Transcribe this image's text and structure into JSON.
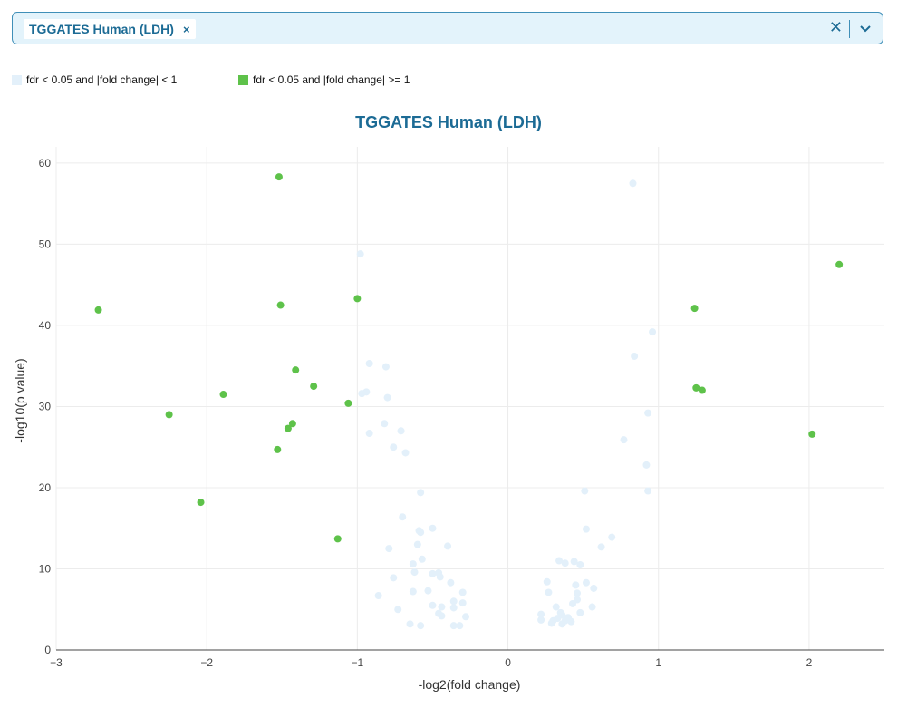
{
  "selector": {
    "selected_chip": "TGGATES Human (LDH)",
    "chip_remove": "×",
    "clear": "✕"
  },
  "legend": [
    {
      "label": "fdr < 0.05 and |fold change| < 1",
      "color": "#e3f0fa"
    },
    {
      "label": "fdr < 0.05 and |fold change| >= 1",
      "color": "#5ec24a"
    }
  ],
  "chart_data": {
    "type": "scatter",
    "title": "TGGATES Human (LDH)",
    "xlabel": "-log2(fold change)",
    "ylabel": "-log10(p value)",
    "xlim": [
      -3,
      2.5
    ],
    "ylim": [
      0,
      62
    ],
    "xticks": [
      -3,
      -2,
      -1,
      0,
      1,
      2
    ],
    "yticks": [
      0,
      10,
      20,
      30,
      40,
      50,
      60
    ],
    "grid": true,
    "series": [
      {
        "name": "fdr < 0.05 and |fold change| < 1",
        "color": "#e3f0fa",
        "points": [
          [
            0.83,
            57.5
          ],
          [
            -0.98,
            48.8
          ],
          [
            0.96,
            39.2
          ],
          [
            0.84,
            36.2
          ],
          [
            -0.92,
            35.3
          ],
          [
            -0.81,
            34.9
          ],
          [
            -0.97,
            31.6
          ],
          [
            -0.94,
            31.8
          ],
          [
            -0.8,
            31.1
          ],
          [
            -0.82,
            27.9
          ],
          [
            -0.92,
            26.7
          ],
          [
            -0.71,
            27.0
          ],
          [
            0.77,
            25.9
          ],
          [
            -0.76,
            25.0
          ],
          [
            -0.68,
            24.3
          ],
          [
            0.93,
            29.2
          ],
          [
            0.92,
            22.8
          ],
          [
            0.93,
            19.6
          ],
          [
            -0.58,
            19.4
          ],
          [
            0.51,
            19.6
          ],
          [
            -0.7,
            16.4
          ],
          [
            -0.59,
            14.7
          ],
          [
            -0.58,
            14.5
          ],
          [
            -0.5,
            15.0
          ],
          [
            0.52,
            14.9
          ],
          [
            0.69,
            13.9
          ],
          [
            -0.6,
            13.0
          ],
          [
            -0.4,
            12.8
          ],
          [
            -0.79,
            12.5
          ],
          [
            0.62,
            12.7
          ],
          [
            -0.57,
            11.2
          ],
          [
            0.34,
            11.0
          ],
          [
            0.38,
            10.7
          ],
          [
            0.44,
            10.9
          ],
          [
            0.48,
            10.5
          ],
          [
            -0.63,
            10.6
          ],
          [
            -0.62,
            9.6
          ],
          [
            -0.5,
            9.4
          ],
          [
            -0.46,
            9.5
          ],
          [
            -0.45,
            9.0
          ],
          [
            -0.76,
            8.9
          ],
          [
            -0.38,
            8.3
          ],
          [
            0.26,
            8.4
          ],
          [
            0.45,
            8.0
          ],
          [
            0.52,
            8.3
          ],
          [
            0.57,
            7.6
          ],
          [
            -0.63,
            7.2
          ],
          [
            -0.53,
            7.3
          ],
          [
            -0.3,
            7.1
          ],
          [
            0.27,
            7.1
          ],
          [
            0.46,
            7.0
          ],
          [
            -0.86,
            6.7
          ],
          [
            -0.36,
            6.0
          ],
          [
            0.46,
            6.2
          ],
          [
            0.43,
            5.7
          ],
          [
            0.32,
            5.3
          ],
          [
            -0.5,
            5.5
          ],
          [
            -0.44,
            5.3
          ],
          [
            -0.36,
            5.2
          ],
          [
            -0.3,
            5.8
          ],
          [
            0.56,
            5.3
          ],
          [
            -0.73,
            5.0
          ],
          [
            -0.46,
            4.5
          ],
          [
            -0.44,
            4.2
          ],
          [
            0.48,
            4.6
          ],
          [
            0.36,
            4.3
          ],
          [
            0.22,
            4.4
          ],
          [
            0.35,
            4.6
          ],
          [
            0.4,
            4.0
          ],
          [
            0.33,
            3.9
          ],
          [
            -0.28,
            4.1
          ],
          [
            0.38,
            3.6
          ],
          [
            0.22,
            3.7
          ],
          [
            0.29,
            3.3
          ],
          [
            0.36,
            3.2
          ],
          [
            -0.65,
            3.2
          ],
          [
            -0.58,
            3.0
          ],
          [
            -0.36,
            3.0
          ],
          [
            -0.32,
            3.0
          ],
          [
            0.42,
            3.5
          ],
          [
            0.3,
            3.6
          ]
        ]
      },
      {
        "name": "fdr < 0.05 and |fold change| >= 1",
        "color": "#5ec24a",
        "points": [
          [
            -1.52,
            58.3
          ],
          [
            2.2,
            47.5
          ],
          [
            -1.0,
            43.3
          ],
          [
            -1.51,
            42.5
          ],
          [
            -2.72,
            41.9
          ],
          [
            1.24,
            42.1
          ],
          [
            -1.41,
            34.5
          ],
          [
            -1.29,
            32.5
          ],
          [
            1.25,
            32.3
          ],
          [
            1.29,
            32.0
          ],
          [
            -1.89,
            31.5
          ],
          [
            -1.06,
            30.4
          ],
          [
            -2.25,
            29.0
          ],
          [
            -1.43,
            27.9
          ],
          [
            -1.46,
            27.3
          ],
          [
            2.02,
            26.6
          ],
          [
            -1.53,
            24.7
          ],
          [
            -2.04,
            18.2
          ],
          [
            -1.13,
            13.7
          ]
        ]
      }
    ]
  }
}
